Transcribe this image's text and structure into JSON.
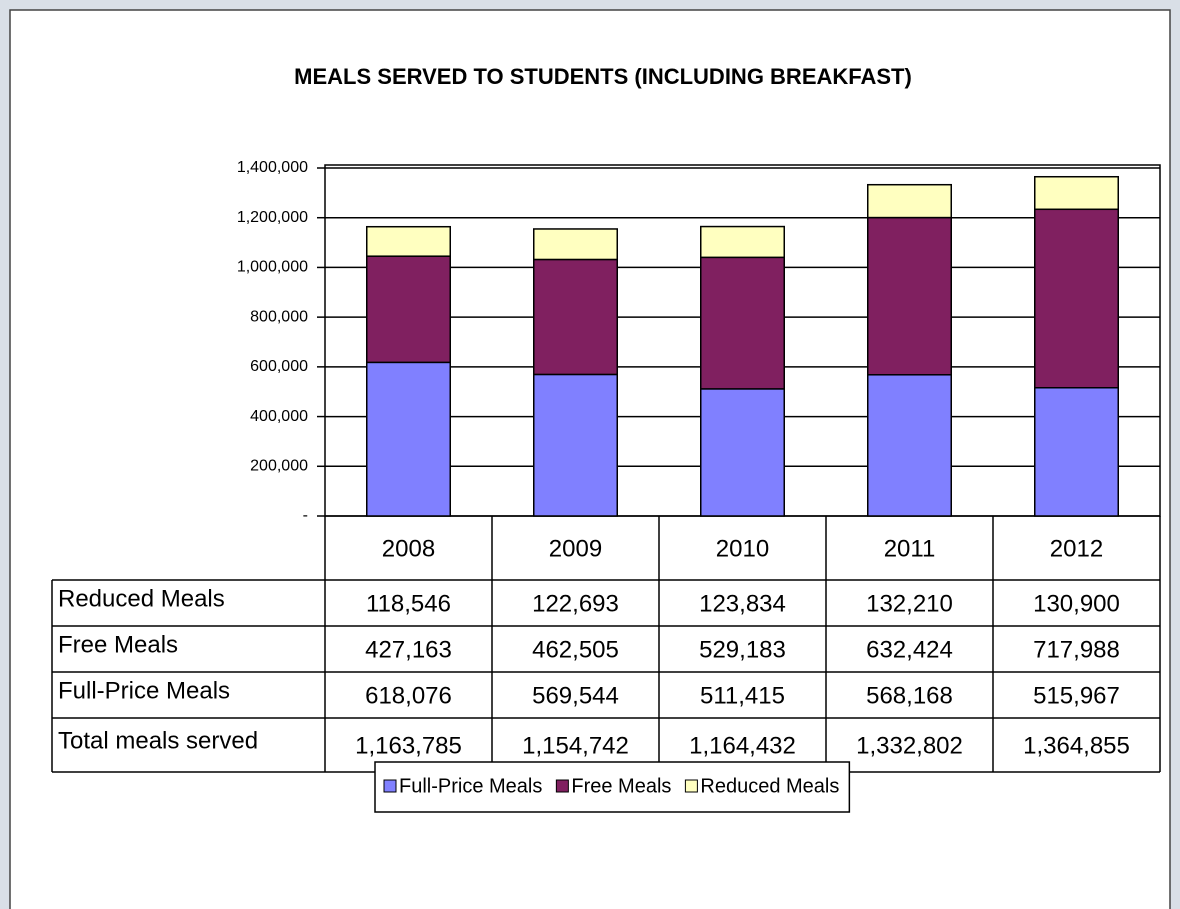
{
  "chart_data": {
    "type": "stacked_bar",
    "title": "MEALS SERVED TO STUDENTS (INCLUDING BREAKFAST)",
    "categories": [
      "2008",
      "2009",
      "2010",
      "2011",
      "2012"
    ],
    "series": [
      {
        "name": "Full-Price Meals",
        "color": "#8080ff",
        "values": [
          618076,
          569544,
          511415,
          568168,
          515967
        ],
        "value_labels": [
          "618,076",
          "569,544",
          "511,415",
          "568,168",
          "515,967"
        ]
      },
      {
        "name": "Free Meals",
        "color": "#802060",
        "values": [
          427163,
          462505,
          529183,
          632424,
          717988
        ],
        "value_labels": [
          "427,163",
          "462,505",
          "529,183",
          "632,424",
          "717,988"
        ]
      },
      {
        "name": "Reduced Meals",
        "color": "#ffffc0",
        "values": [
          118546,
          122693,
          123834,
          132210,
          130900
        ],
        "value_labels": [
          "118,546",
          "122,693",
          "123,834",
          "132,210",
          "130,900"
        ]
      }
    ],
    "total_row": {
      "name": "Total meals served",
      "values": [
        1163785,
        1154742,
        1164432,
        1332802,
        1364855
      ],
      "value_labels": [
        "1,163,785",
        "1,154,742",
        "1,164,432",
        "1,332,802",
        "1,364,855"
      ]
    },
    "ylim": [
      0,
      1400000
    ],
    "yticks": [
      {
        "value": 0,
        "label": "-"
      },
      {
        "value": 200000,
        "label": "200,000"
      },
      {
        "value": 400000,
        "label": "400,000"
      },
      {
        "value": 600000,
        "label": "600,000"
      },
      {
        "value": 800000,
        "label": "800,000"
      },
      {
        "value": 1000000,
        "label": "1,000,000"
      },
      {
        "value": 1200000,
        "label": "1,200,000"
      },
      {
        "value": 1400000,
        "label": "1,400,000"
      }
    ],
    "grid": true,
    "legend": "bottom"
  }
}
